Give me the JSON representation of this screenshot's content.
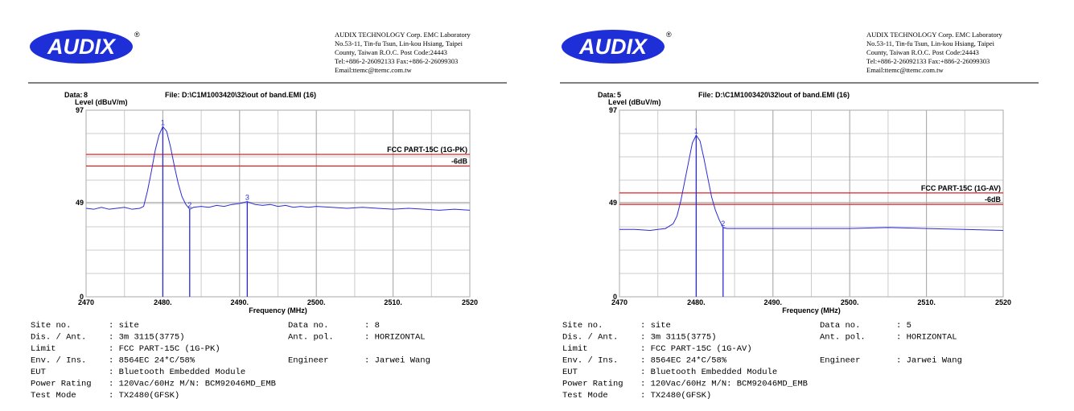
{
  "chart_data": [
    {
      "type": "line",
      "data_label": "Data:",
      "data_number": "8",
      "title": "File: D:\\C1M1003420\\32\\out of band.EMI  (16)",
      "ylabel": "Level (dBuV/m)",
      "xlabel": "Frequency (MHz)",
      "xlim": [
        2470,
        2520
      ],
      "ylim": [
        0,
        97
      ],
      "xticks": [
        2470,
        {
          "value": 2480,
          "label": "2480."
        },
        {
          "value": 2490,
          "label": "2490."
        },
        {
          "value": 2500,
          "label": "2500."
        },
        {
          "value": 2510,
          "label": "2510."
        },
        2520
      ],
      "yticks": [
        0,
        49,
        97
      ],
      "grid": true,
      "x": [
        2470,
        2471,
        2472,
        2473,
        2474,
        2475,
        2476,
        2477,
        2477.5,
        2478,
        2478.5,
        2479,
        2479.5,
        2480,
        2480.5,
        2481,
        2481.5,
        2482,
        2482.5,
        2483,
        2483.5,
        2484,
        2485,
        2486,
        2487,
        2488,
        2489,
        2490,
        2491,
        2492,
        2493,
        2494,
        2495,
        2496,
        2497,
        2498,
        2499,
        2500,
        2502,
        2504,
        2506,
        2508,
        2510,
        2512,
        2514,
        2516,
        2518,
        2520
      ],
      "series": [
        {
          "color": "#2b2bd6",
          "values": [
            46,
            45.5,
            46.5,
            45.5,
            46,
            46.5,
            45.5,
            46,
            47,
            55,
            65,
            76,
            84,
            88.5,
            86,
            78,
            68,
            59,
            52,
            48,
            45.5,
            46.5,
            47,
            46.5,
            47.5,
            47,
            48,
            48.5,
            49.5,
            48,
            47.5,
            48,
            47,
            47.5,
            46.5,
            47,
            46.5,
            47,
            46.5,
            46,
            46.5,
            46,
            45.5,
            46,
            45.5,
            45,
            45.5,
            45
          ]
        }
      ],
      "limit_lines": [
        {
          "label": "FCC PART-15C (1G-PK)",
          "value": 74,
          "color": "#e02020"
        },
        {
          "label": "-6dB",
          "value": 68,
          "color": "#e02020"
        }
      ],
      "markers": [
        {
          "label": "1",
          "x": 2480,
          "value": 88.5
        },
        {
          "label": "2",
          "x": 2483.5,
          "value": 45.5
        },
        {
          "label": "3",
          "x": 2491,
          "value": 49.5
        }
      ]
    },
    {
      "type": "line",
      "data_label": "Data:",
      "data_number": "5",
      "title": "File: D:\\C1M1003420\\32\\out of band.EMI  (16)",
      "ylabel": "Level (dBuV/m)",
      "xlabel": "Frequency (MHz)",
      "xlim": [
        2470,
        2520
      ],
      "ylim": [
        0,
        97
      ],
      "xticks": [
        2470,
        {
          "value": 2480,
          "label": "2480."
        },
        {
          "value": 2490,
          "label": "2490."
        },
        {
          "value": 2500,
          "label": "2500."
        },
        {
          "value": 2510,
          "label": "2510."
        },
        2520
      ],
      "yticks": [
        0,
        49,
        97
      ],
      "grid": true,
      "x": [
        2470,
        2472,
        2474,
        2475,
        2476,
        2477,
        2477.5,
        2478,
        2478.5,
        2479,
        2479.5,
        2480,
        2480.5,
        2481,
        2481.5,
        2482,
        2482.5,
        2483,
        2483.5,
        2484,
        2486,
        2490,
        2495,
        2500,
        2505,
        2510,
        2515,
        2520
      ],
      "series": [
        {
          "color": "#2b2bd6",
          "values": [
            35,
            35,
            34.5,
            35,
            35.5,
            38,
            42,
            50,
            60,
            70,
            80,
            84,
            81,
            72,
            62,
            52,
            45,
            40,
            36,
            35.5,
            35.5,
            35.5,
            35.5,
            35.5,
            36,
            35.5,
            35,
            34.5
          ]
        }
      ],
      "limit_lines": [
        {
          "label": "FCC PART-15C (1G-AV)",
          "value": 54,
          "color": "#e02020"
        },
        {
          "label": "-6dB",
          "value": 48,
          "color": "#e02020"
        }
      ],
      "markers": [
        {
          "label": "1",
          "x": 2480,
          "value": 84
        },
        {
          "label": "2",
          "x": 2483.5,
          "value": 36
        }
      ]
    }
  ],
  "reports": [
    {
      "logo": "AUDIX",
      "logo_mark": "®",
      "address": [
        "AUDIX TECHNOLOGY Corp.  EMC Laboratory",
        "No.53-11, Tin-fu Tsun, Lin-kou Hsiang, Taipei",
        "County, Taiwan R.O.C.  Post Code:24443",
        "Tel:+886-2-26092133  Fax:+886-2-26099303",
        "Email:ttemc@ttemc.com.tw"
      ],
      "info": [
        {
          "label": "Site no.",
          "value": ": site",
          "label2": "Data no.",
          "value2": ": 8"
        },
        {
          "label": "Dis. / Ant.",
          "value": ": 3m   3115(3775)",
          "label2": "Ant. pol.",
          "value2": ": HORIZONTAL"
        },
        {
          "label": "Limit",
          "value": ": FCC PART-15C (1G-PK)"
        },
        {
          "label": "Env. / Ins.",
          "value": ": 8564EC 24*C/58%",
          "label2": "Engineer",
          "value2": ": Jarwei Wang"
        },
        {
          "label": "EUT",
          "value": ": Bluetooth Embedded Module"
        },
        {
          "label": "Power Rating",
          "value": ": 120Vac/60Hz M/N: BCM92046MD_EMB"
        },
        {
          "label": "Test Mode",
          "value": ": TX2480(GFSK)"
        }
      ]
    },
    {
      "logo": "AUDIX",
      "logo_mark": "®",
      "address": [
        "AUDIX TECHNOLOGY Corp.  EMC Laboratory",
        "No.53-11, Tin-fu Tsun, Lin-kou Hsiang, Taipei",
        "County, Taiwan R.O.C.  Post Code:24443",
        "Tel:+886-2-26092133  Fax:+886-2-26099303",
        "Email:ttemc@ttemc.com.tw"
      ],
      "info": [
        {
          "label": "Site no.",
          "value": ": site",
          "label2": "Data no.",
          "value2": ": 5"
        },
        {
          "label": "Dis. / Ant.",
          "value": ": 3m   3115(3775)",
          "label2": "Ant. pol.",
          "value2": ": HORIZONTAL"
        },
        {
          "label": "Limit",
          "value": ": FCC PART-15C (1G-AV)"
        },
        {
          "label": "Env. / Ins.",
          "value": ": 8564EC 24*C/58%",
          "label2": "Engineer",
          "value2": ": Jarwei Wang"
        },
        {
          "label": "EUT",
          "value": ": Bluetooth Embedded Module"
        },
        {
          "label": "Power Rating",
          "value": ": 120Vac/60Hz M/N: BCM92046MD_EMB"
        },
        {
          "label": "Test Mode",
          "value": ": TX2480(GFSK)"
        }
      ]
    }
  ]
}
